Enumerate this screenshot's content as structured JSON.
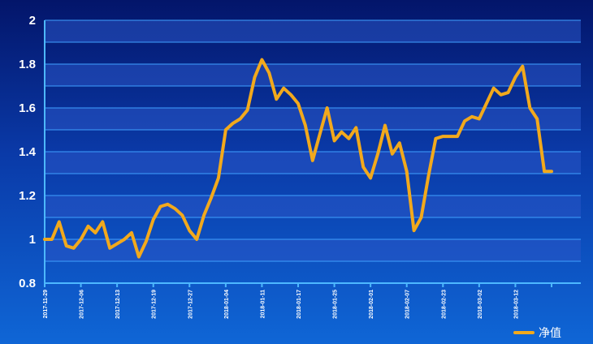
{
  "chart_data": {
    "type": "line",
    "title": "",
    "xlabel": "",
    "ylabel": "",
    "ylim": [
      0.8,
      2
    ],
    "yticks": [
      "0.8",
      "1",
      "1.2",
      "1.4",
      "1.6",
      "1.8",
      "2"
    ],
    "xtick_labels": [
      "2017-11-29",
      "2017-12-06",
      "2017-12-13",
      "2017-12-19",
      "2017-12-27",
      "2018-01-04",
      "2018-01-11",
      "2018-01-17",
      "2018-01-25",
      "2018-02-01",
      "2018-02-07",
      "2018-02-23",
      "2018-03-02",
      "2018-03-12"
    ],
    "legend_position": "bottom-right",
    "grid": true,
    "colors": {
      "line": "#f2a91c",
      "grid": "#3fa0ff",
      "band": "#2a56c6"
    },
    "series": [
      {
        "name": "净值",
        "values": [
          1.0,
          1.0,
          1.08,
          0.97,
          0.96,
          1.0,
          1.06,
          1.03,
          1.08,
          0.96,
          0.98,
          1.0,
          1.03,
          0.92,
          0.99,
          1.09,
          1.15,
          1.16,
          1.14,
          1.11,
          1.04,
          1.0,
          1.11,
          1.19,
          1.28,
          1.5,
          1.53,
          1.55,
          1.59,
          1.74,
          1.82,
          1.76,
          1.64,
          1.69,
          1.66,
          1.62,
          1.52,
          1.36,
          1.48,
          1.6,
          1.45,
          1.49,
          1.46,
          1.51,
          1.33,
          1.28,
          1.39,
          1.52,
          1.39,
          1.44,
          1.31,
          1.04,
          1.1,
          1.29,
          1.46,
          1.47,
          1.47,
          1.47,
          1.54,
          1.56,
          1.55,
          1.62,
          1.69,
          1.66,
          1.67,
          1.74,
          1.79,
          1.6,
          1.55,
          1.31,
          1.31
        ]
      }
    ]
  }
}
